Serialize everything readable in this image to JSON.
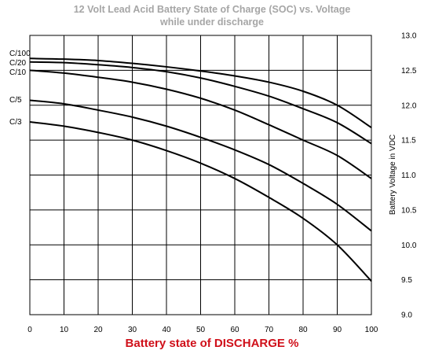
{
  "chart_data": {
    "type": "line",
    "title_lines": [
      "12 Volt Lead Acid Battery State of Charge (SOC) vs. Voltage",
      "while under discharge"
    ],
    "xlabel": "Battery state of DISCHARGE %",
    "ylabel": "Battery Voltage in VDC",
    "xlim": [
      0,
      100
    ],
    "ylim": [
      9.0,
      13.0
    ],
    "x_ticks": [
      "0",
      "10",
      "20",
      "30",
      "40",
      "50",
      "60",
      "70",
      "80",
      "90",
      "100"
    ],
    "y_ticks": [
      "9.0",
      "9.5",
      "10.0",
      "10.5",
      "11.0",
      "11.5",
      "12.0",
      "12.5",
      "13.0"
    ],
    "grid": true,
    "x": [
      0,
      10,
      20,
      30,
      40,
      50,
      60,
      70,
      80,
      90,
      100
    ],
    "series": [
      {
        "name": "C/100",
        "values": [
          12.67,
          12.66,
          12.64,
          12.6,
          12.55,
          12.49,
          12.42,
          12.33,
          12.2,
          12.0,
          11.68
        ]
      },
      {
        "name": "C/20",
        "values": [
          12.62,
          12.61,
          12.58,
          12.54,
          12.48,
          12.39,
          12.27,
          12.13,
          11.95,
          11.75,
          11.45
        ]
      },
      {
        "name": "C/10",
        "values": [
          12.5,
          12.46,
          12.4,
          12.33,
          12.23,
          12.1,
          11.93,
          11.72,
          11.5,
          11.28,
          10.95
        ]
      },
      {
        "name": "C/5",
        "values": [
          12.07,
          12.02,
          11.93,
          11.83,
          11.7,
          11.54,
          11.36,
          11.15,
          10.88,
          10.58,
          10.2
        ]
      },
      {
        "name": "C/3",
        "values": [
          11.76,
          11.7,
          11.61,
          11.5,
          11.35,
          11.17,
          10.95,
          10.68,
          10.38,
          10.0,
          9.48
        ]
      }
    ]
  }
}
